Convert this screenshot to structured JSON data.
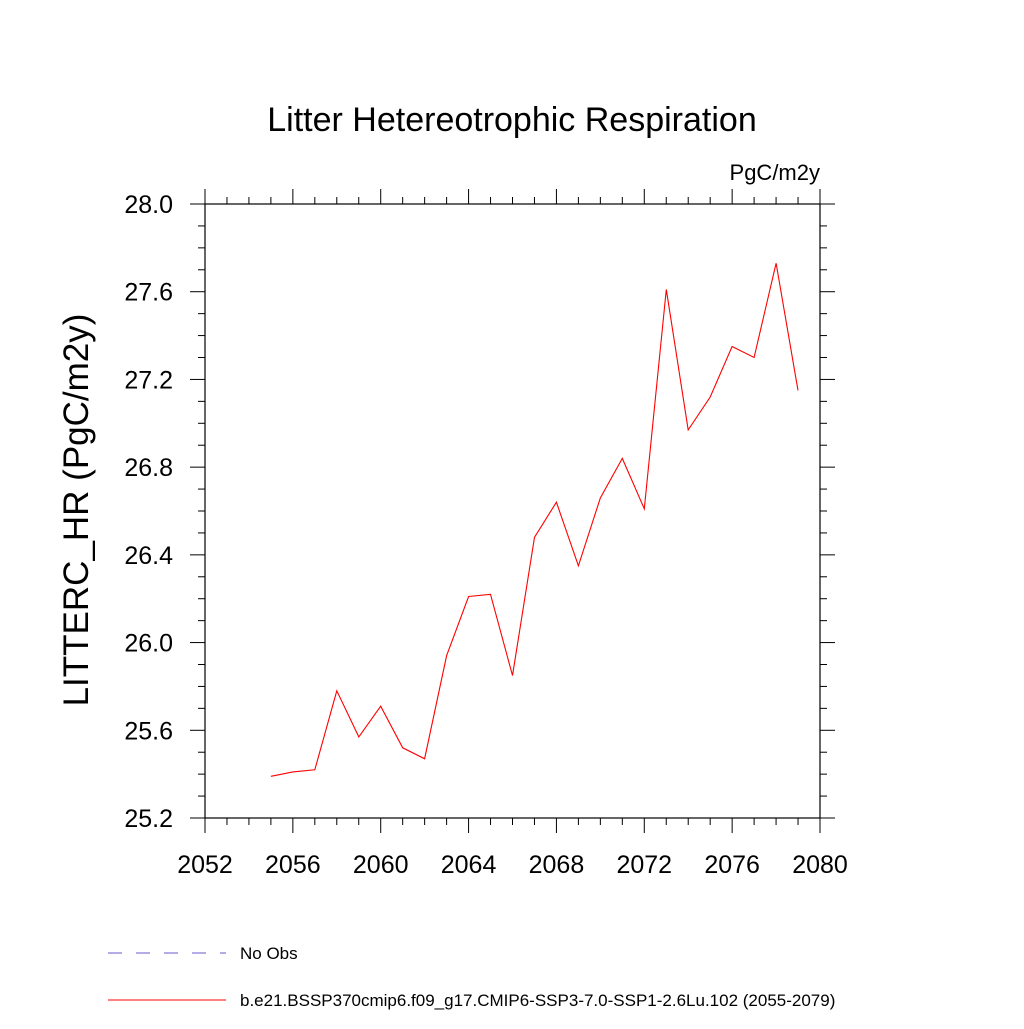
{
  "chart_data": {
    "type": "line",
    "title": "Litter Hetereotrophic Respiration",
    "units": "PgC/m2y",
    "xlabel": "",
    "ylabel": "LITTERC_HR  (PgC/m2y)",
    "xlim": [
      2052,
      2080
    ],
    "ylim": [
      25.2,
      28.0
    ],
    "xticks": [
      2052,
      2056,
      2060,
      2064,
      2068,
      2072,
      2076,
      2080
    ],
    "xtick_labels": [
      "2052",
      "2056",
      "2060",
      "2064",
      "2068",
      "2072",
      "2076",
      "2080"
    ],
    "yticks": [
      25.2,
      25.6,
      26.0,
      26.4,
      26.8,
      27.2,
      27.6,
      28.0
    ],
    "ytick_labels": [
      "25.2",
      "25.6",
      "26.0",
      "26.4",
      "26.8",
      "27.2",
      "27.6",
      "28.0"
    ],
    "x_minor_step": 1,
    "y_minor_step": 0.1,
    "grid": false,
    "legend_position": "bottom-left",
    "series": [
      {
        "name": "b.e21.BSSP370cmip6.f09_g17.CMIP6-SSP3-7.0-SSP1-2.6Lu.102 (2055-2079)",
        "color": "#ff0000",
        "style": "solid",
        "x": [
          2055,
          2056,
          2057,
          2058,
          2059,
          2060,
          2061,
          2062,
          2063,
          2064,
          2065,
          2066,
          2067,
          2068,
          2069,
          2070,
          2071,
          2072,
          2073,
          2074,
          2075,
          2076,
          2077,
          2078,
          2079
        ],
        "y": [
          25.39,
          25.41,
          25.42,
          25.78,
          25.57,
          25.71,
          25.52,
          25.47,
          25.94,
          26.21,
          26.22,
          25.85,
          26.48,
          26.64,
          26.35,
          26.66,
          26.84,
          26.61,
          27.61,
          26.97,
          27.12,
          27.35,
          27.3,
          27.73,
          27.15
        ]
      }
    ],
    "legend": [
      {
        "label": "No Obs",
        "color": "#6a5acd",
        "style": "dashed"
      },
      {
        "label": "b.e21.BSSP370cmip6.f09_g17.CMIP6-SSP3-7.0-SSP1-2.6Lu.102 (2055-2079)",
        "color": "#ff0000",
        "style": "solid"
      }
    ]
  }
}
